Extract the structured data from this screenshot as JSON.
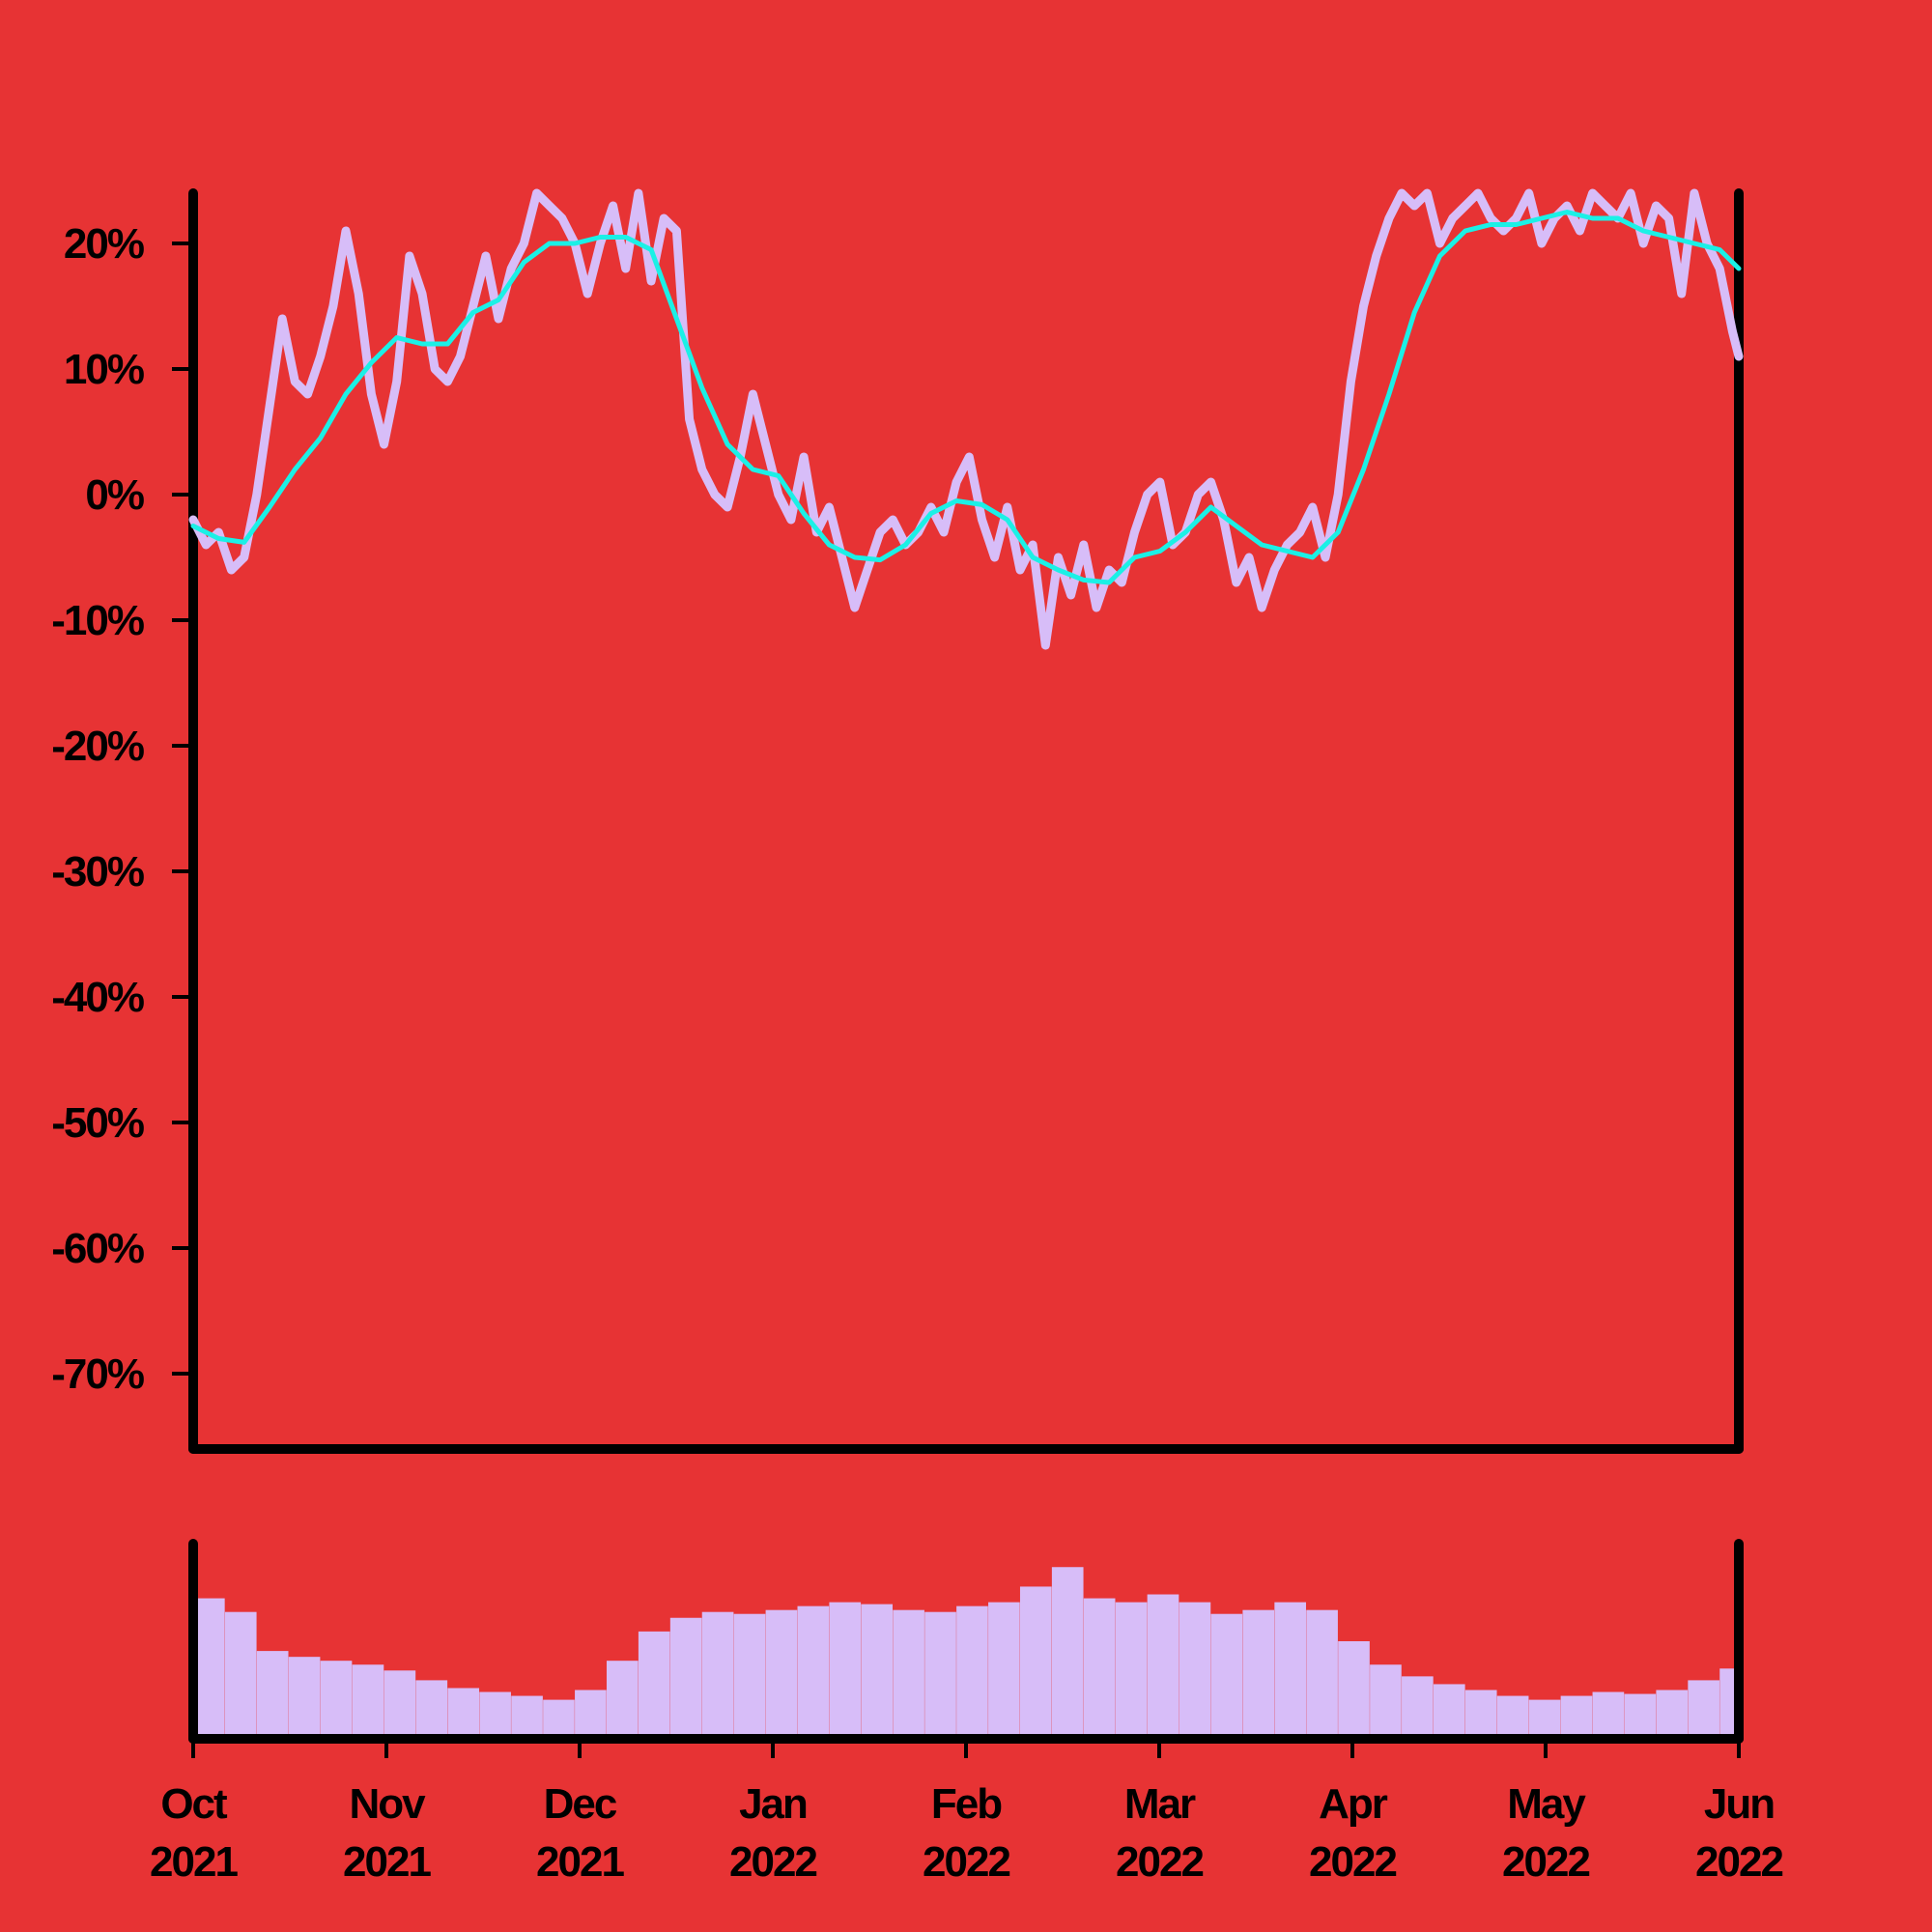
{
  "colors": {
    "background": "#e73334",
    "price_line": "#d7bdf8",
    "moving_average": "#1bf0e6",
    "volume_bars": "#d7bdf8",
    "axes": "#000000"
  },
  "chart_data": [
    {
      "type": "line",
      "title": "",
      "xlabel": "",
      "ylabel": "",
      "y_unit": "percent",
      "ylim": [
        -76,
        24
      ],
      "y_ticks": [
        "20%",
        "10%",
        "0%",
        "-10%",
        "-20%",
        "-30%",
        "-40%",
        "-50%",
        "-60%",
        "-70%"
      ],
      "y_tick_values": [
        20,
        10,
        0,
        -10,
        -20,
        -30,
        -40,
        -50,
        -60,
        -70
      ],
      "xlim": [
        "2021-10-01",
        "2022-06-01"
      ],
      "grid": false,
      "legend": "none",
      "series": [
        {
          "role": "price",
          "x": [
            "2021-10-01",
            "2021-10-03",
            "2021-10-05",
            "2021-10-07",
            "2021-10-09",
            "2021-10-11",
            "2021-10-13",
            "2021-10-15",
            "2021-10-17",
            "2021-10-19",
            "2021-10-21",
            "2021-10-23",
            "2021-10-25",
            "2021-10-27",
            "2021-10-29",
            "2021-10-31",
            "2021-11-02",
            "2021-11-04",
            "2021-11-06",
            "2021-11-08",
            "2021-11-10",
            "2021-11-12",
            "2021-11-14",
            "2021-11-16",
            "2021-11-18",
            "2021-11-20",
            "2021-11-22",
            "2021-11-24",
            "2021-11-26",
            "2021-11-28",
            "2021-11-30",
            "2021-12-02",
            "2021-12-04",
            "2021-12-06",
            "2021-12-08",
            "2021-12-10",
            "2021-12-12",
            "2021-12-14",
            "2021-12-16",
            "2021-12-18",
            "2021-12-20",
            "2021-12-22",
            "2021-12-24",
            "2021-12-26",
            "2021-12-28",
            "2021-12-30",
            "2022-01-01",
            "2022-01-03",
            "2022-01-05",
            "2022-01-07",
            "2022-01-09",
            "2022-01-11",
            "2022-01-13",
            "2022-01-15",
            "2022-01-17",
            "2022-01-19",
            "2022-01-21",
            "2022-01-23",
            "2022-01-25",
            "2022-01-27",
            "2022-01-29",
            "2022-01-31",
            "2022-02-02",
            "2022-02-04",
            "2022-02-06",
            "2022-02-08",
            "2022-02-10",
            "2022-02-12",
            "2022-02-14",
            "2022-02-16",
            "2022-02-18",
            "2022-02-20",
            "2022-02-22",
            "2022-02-24",
            "2022-02-26",
            "2022-02-28",
            "2022-03-02",
            "2022-03-04",
            "2022-03-06",
            "2022-03-08",
            "2022-03-10",
            "2022-03-12",
            "2022-03-14",
            "2022-03-16",
            "2022-03-18",
            "2022-03-20",
            "2022-03-22",
            "2022-03-24",
            "2022-03-26",
            "2022-03-28",
            "2022-03-30",
            "2022-04-01",
            "2022-04-03",
            "2022-04-05",
            "2022-04-07",
            "2022-04-09",
            "2022-04-11",
            "2022-04-13",
            "2022-04-15",
            "2022-04-17",
            "2022-04-19",
            "2022-04-21",
            "2022-04-23",
            "2022-04-25",
            "2022-04-27",
            "2022-04-29",
            "2022-05-01",
            "2022-05-03",
            "2022-05-05",
            "2022-05-07",
            "2022-05-09",
            "2022-05-11",
            "2022-05-13",
            "2022-05-15",
            "2022-05-17",
            "2022-05-19",
            "2022-05-21",
            "2022-05-23",
            "2022-05-25",
            "2022-05-27",
            "2022-05-29",
            "2022-05-31",
            "2022-06-01"
          ],
          "y": [
            -2,
            -4,
            -3,
            -6,
            -5,
            0,
            7,
            14,
            9,
            8,
            11,
            15,
            21,
            16,
            8,
            4,
            9,
            19,
            16,
            10,
            9,
            11,
            15,
            19,
            14,
            18,
            20,
            24,
            23,
            22,
            20,
            16,
            20,
            23,
            18,
            24,
            17,
            22,
            21,
            6,
            2,
            0,
            -1,
            3,
            8,
            4,
            0,
            -2,
            3,
            -3,
            -1,
            -5,
            -9,
            -6,
            -3,
            -2,
            -4,
            -3,
            -1,
            -3,
            1,
            3,
            -2,
            -5,
            -1,
            -6,
            -4,
            -12,
            -5,
            -8,
            -4,
            -9,
            -6,
            -7,
            -3,
            0,
            1,
            -4,
            -3,
            0,
            1,
            -2,
            -7,
            -5,
            -9,
            -6,
            -4,
            -3,
            -1,
            -5,
            0,
            9,
            15,
            19,
            22,
            24,
            23,
            24,
            20,
            22,
            23,
            24,
            22,
            21,
            22,
            24,
            20,
            22,
            23,
            21,
            24,
            23,
            22,
            24,
            20,
            23,
            22,
            16,
            24,
            20,
            18,
            13,
            11
          ]
        },
        {
          "role": "moving-average",
          "x": [
            "2021-10-01",
            "2021-10-05",
            "2021-10-09",
            "2021-10-13",
            "2021-10-17",
            "2021-10-21",
            "2021-10-25",
            "2021-10-29",
            "2021-11-02",
            "2021-11-06",
            "2021-11-10",
            "2021-11-14",
            "2021-11-18",
            "2021-11-22",
            "2021-11-26",
            "2021-11-30",
            "2021-12-04",
            "2021-12-08",
            "2021-12-12",
            "2021-12-16",
            "2021-12-20",
            "2021-12-24",
            "2021-12-28",
            "2022-01-01",
            "2022-01-05",
            "2022-01-09",
            "2022-01-13",
            "2022-01-17",
            "2022-01-21",
            "2022-01-25",
            "2022-01-29",
            "2022-02-02",
            "2022-02-06",
            "2022-02-10",
            "2022-02-14",
            "2022-02-18",
            "2022-02-22",
            "2022-02-26",
            "2022-03-02",
            "2022-03-06",
            "2022-03-10",
            "2022-03-14",
            "2022-03-18",
            "2022-03-22",
            "2022-03-26",
            "2022-03-30",
            "2022-04-03",
            "2022-04-07",
            "2022-04-11",
            "2022-04-15",
            "2022-04-19",
            "2022-04-23",
            "2022-04-27",
            "2022-05-01",
            "2022-05-05",
            "2022-05-09",
            "2022-05-13",
            "2022-05-17",
            "2022-05-21",
            "2022-05-25",
            "2022-05-29",
            "2022-06-01"
          ],
          "y": [
            -2.5,
            -3.5,
            -3.8,
            -1,
            2,
            4.5,
            8,
            10.5,
            12.5,
            12,
            12,
            14.5,
            15.5,
            18.5,
            20,
            20,
            20.5,
            20.5,
            19.5,
            14,
            8.5,
            4,
            2,
            1.5,
            -1.5,
            -4,
            -5,
            -5.2,
            -4,
            -1.5,
            -0.5,
            -0.8,
            -2,
            -5,
            -6,
            -6.8,
            -7,
            -5,
            -4.5,
            -3,
            -1,
            -2.5,
            -4,
            -4.5,
            -5,
            -3,
            2,
            8,
            14.5,
            19,
            21,
            21.5,
            21.5,
            22,
            22.5,
            22,
            22,
            21,
            20.5,
            20,
            19.5,
            18
          ]
        }
      ]
    },
    {
      "type": "bar",
      "role": "volume",
      "title": "",
      "axis_labels_shown": false,
      "x": [
        "2021-10-01",
        "2021-10-06",
        "2021-10-11",
        "2021-10-16",
        "2021-10-21",
        "2021-10-26",
        "2021-10-31",
        "2021-11-05",
        "2021-11-10",
        "2021-11-15",
        "2021-11-20",
        "2021-11-25",
        "2021-11-30",
        "2021-12-05",
        "2021-12-10",
        "2021-12-15",
        "2021-12-20",
        "2021-12-25",
        "2021-12-30",
        "2022-01-04",
        "2022-01-09",
        "2022-01-14",
        "2022-01-19",
        "2022-01-24",
        "2022-01-29",
        "2022-02-03",
        "2022-02-08",
        "2022-02-13",
        "2022-02-18",
        "2022-02-23",
        "2022-02-28",
        "2022-03-05",
        "2022-03-10",
        "2022-03-15",
        "2022-03-20",
        "2022-03-25",
        "2022-03-30",
        "2022-04-04",
        "2022-04-09",
        "2022-04-14",
        "2022-04-19",
        "2022-04-24",
        "2022-04-29",
        "2022-05-04",
        "2022-05-09",
        "2022-05-14",
        "2022-05-19",
        "2022-05-24",
        "2022-05-29"
      ],
      "values": [
        0.72,
        0.65,
        0.45,
        0.42,
        0.4,
        0.38,
        0.35,
        0.3,
        0.26,
        0.24,
        0.22,
        0.2,
        0.25,
        0.4,
        0.55,
        0.62,
        0.65,
        0.64,
        0.66,
        0.68,
        0.7,
        0.69,
        0.66,
        0.65,
        0.68,
        0.7,
        0.78,
        0.88,
        0.72,
        0.7,
        0.74,
        0.7,
        0.64,
        0.66,
        0.7,
        0.66,
        0.5,
        0.38,
        0.32,
        0.28,
        0.25,
        0.22,
        0.2,
        0.22,
        0.24,
        0.23,
        0.25,
        0.3,
        0.36
      ]
    }
  ],
  "x_axis": {
    "ticks": [
      {
        "month": "Oct",
        "year": "2021"
      },
      {
        "month": "Nov",
        "year": "2021"
      },
      {
        "month": "Dec",
        "year": "2021"
      },
      {
        "month": "Jan",
        "year": "2022"
      },
      {
        "month": "Feb",
        "year": "2022"
      },
      {
        "month": "Mar",
        "year": "2022"
      },
      {
        "month": "Apr",
        "year": "2022"
      },
      {
        "month": "May",
        "year": "2022"
      },
      {
        "month": "Jun",
        "year": "2022"
      }
    ]
  }
}
